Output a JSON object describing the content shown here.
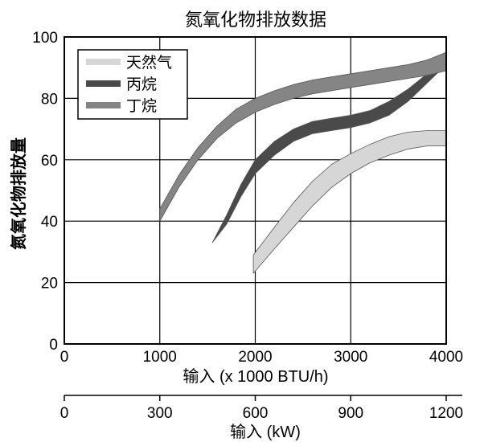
{
  "chart_data": {
    "type": "area",
    "title": "氮氧化物排放数据",
    "xlabel": "输入 (x 1000 BTU/h)",
    "ylabel": "氮氧化物排放量",
    "secondary_xlabel": "输入 (kW)",
    "xlim": [
      0,
      4000
    ],
    "ylim": [
      0,
      100
    ],
    "secondary_xlim": [
      0,
      1200
    ],
    "x_ticks": [
      "0",
      "1000",
      "2000",
      "3000",
      "4000"
    ],
    "y_ticks": [
      "0",
      "20",
      "40",
      "60",
      "80",
      "100"
    ],
    "secondary_x_ticks": [
      "0",
      "300",
      "600",
      "900",
      "1200"
    ],
    "grid": true,
    "legend_position": "top-left",
    "series": [
      {
        "name": "天然气",
        "color": "#d6d6d6",
        "x": [
          1980,
          2200,
          2400,
          2600,
          2800,
          3000,
          3200,
          3400,
          3600,
          3800,
          4000
        ],
        "upper": [
          29,
          38,
          46,
          53,
          58.5,
          62,
          65,
          67.5,
          69,
          69.5,
          69.5
        ],
        "lower": [
          23,
          31,
          38,
          45,
          51,
          55.5,
          59,
          61.5,
          63.5,
          64.5,
          64.5
        ]
      },
      {
        "name": "丙烷",
        "color": "#4a4a4a",
        "x": [
          1550,
          1700,
          1850,
          2000,
          2200,
          2400,
          2600,
          2800,
          3000,
          3200,
          3400,
          3600,
          3800,
          4000
        ],
        "upper": [
          33,
          42,
          52,
          60,
          66,
          70,
          72.5,
          73.5,
          74.5,
          76,
          79,
          83,
          88,
          94
        ],
        "lower": [
          33,
          39,
          48,
          55.5,
          61.5,
          66,
          68.5,
          69.5,
          70.5,
          72,
          74.5,
          79,
          85,
          91
        ]
      },
      {
        "name": "丁烷",
        "color": "#858585",
        "x": [
          1000,
          1200,
          1400,
          1600,
          1800,
          2000,
          2200,
          2400,
          2600,
          2800,
          3000,
          3200,
          3400,
          3600,
          3800,
          4000
        ],
        "upper": [
          44,
          55,
          64,
          71,
          76.5,
          80,
          82.5,
          84.5,
          86,
          87,
          88,
          89,
          90,
          91,
          92.5,
          95
        ],
        "lower": [
          40,
          51,
          60,
          67,
          72,
          75.5,
          78,
          80,
          81.5,
          82.5,
          83.5,
          84.5,
          85.5,
          86.5,
          87.5,
          89
        ]
      }
    ]
  }
}
